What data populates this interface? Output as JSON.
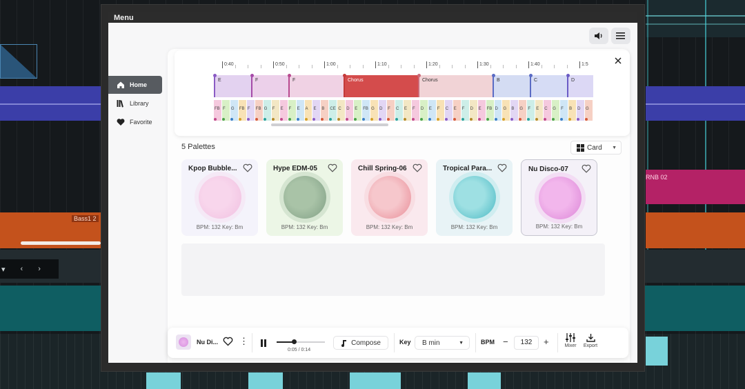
{
  "window": {
    "title": "Menu"
  },
  "background": {
    "track_labels": {
      "bass": "Bass1 2",
      "rnb": "RNB 02"
    }
  },
  "sidebar": {
    "items": [
      {
        "label": "Home",
        "icon": "home-icon",
        "active": true
      },
      {
        "label": "Library",
        "icon": "library-icon",
        "active": false
      },
      {
        "label": "Favorite",
        "icon": "heart-icon",
        "active": false
      }
    ]
  },
  "timeline": {
    "ruler_labels": [
      "0:40",
      "0:50",
      "1:00",
      "1:10",
      "1:20",
      "1:30",
      "1:40",
      "1:5"
    ],
    "sections": [
      {
        "label": "E",
        "color": "#e3d2f0"
      },
      {
        "label": "F",
        "color": "#ecd0ea"
      },
      {
        "label": "F",
        "color": "#f0d2e4"
      },
      {
        "label": "Chorus",
        "color": "#d44c4c"
      },
      {
        "label": "Chorus",
        "color": "#f1d3d6"
      },
      {
        "label": "B",
        "color": "#d4dcf3"
      },
      {
        "label": "C",
        "color": "#d6dcf5"
      },
      {
        "label": "D",
        "color": "#dcd8f5"
      }
    ],
    "chords": [
      "FB",
      "F",
      "G",
      "FB",
      "F",
      "FB",
      "G",
      "F",
      "E",
      "F",
      "E",
      "A",
      "E",
      "B",
      "CE",
      "C",
      "D",
      "E",
      "FB",
      "G",
      "D",
      "F",
      "C",
      "E",
      "F",
      "D",
      "E",
      "F",
      "C",
      "E",
      "F",
      "D",
      "E",
      "FB",
      "D",
      "G",
      "B",
      "G",
      "F",
      "E",
      "C",
      "G",
      "F",
      "B",
      "D",
      "G"
    ]
  },
  "palettes": {
    "count_label": "5 Palettes",
    "view_mode": "Card",
    "items": [
      {
        "title": "Kpop Bubble...",
        "meta": "BPM: 132 Key: Bm",
        "bg": "#f4f3fb",
        "orb": [
          "#f8d6ec",
          "#f0bfe0"
        ]
      },
      {
        "title": "Hype EDM-05",
        "meta": "BPM: 132 Key: Bm",
        "bg": "#ecf6e6",
        "orb": [
          "#a9c3a7",
          "#7e9d83"
        ]
      },
      {
        "title": "Chill Spring-06",
        "meta": "BPM: 132 Key: Bm",
        "bg": "#fae9ee",
        "orb": [
          "#f6c7cc",
          "#e88a95"
        ]
      },
      {
        "title": "Tropical Para...",
        "meta": "BPM: 132 Key: Bm",
        "bg": "#e8f3f6",
        "orb": [
          "#9ee0e3",
          "#45b7c2"
        ]
      },
      {
        "title": "Nu Disco-07",
        "meta": "BPM: 132 Key: Bm",
        "bg": "#f4f1f8",
        "orb": [
          "#f2b6ec",
          "#db83d6"
        ]
      }
    ]
  },
  "player": {
    "track_name": "Nu Di...",
    "time": "0:05 / 0:14",
    "progress": 0.36,
    "compose_label": "Compose",
    "key_label": "Key",
    "key_value": "B min",
    "bpm_label": "BPM",
    "bpm_value": "132",
    "mixer_label": "Mixer",
    "export_label": "Export"
  }
}
